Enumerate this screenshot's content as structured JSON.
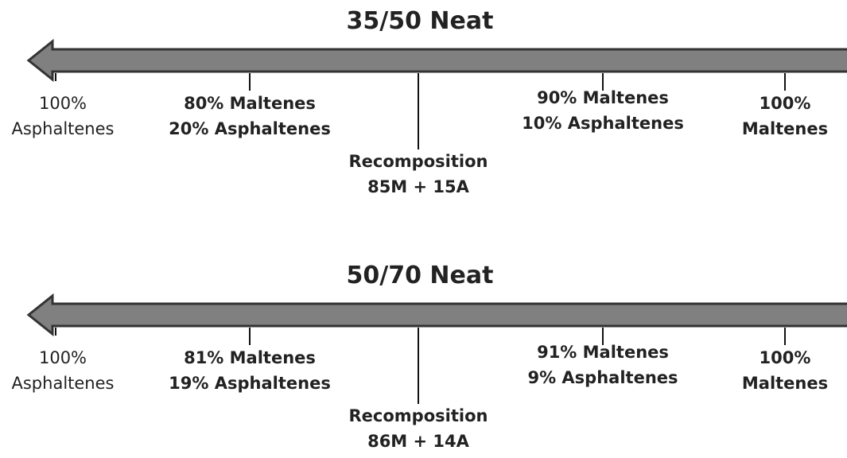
{
  "diagrams": [
    {
      "title": "35/50 Neat",
      "labels": [
        {
          "lines": [
            "100%",
            "Asphaltenes"
          ]
        },
        {
          "lines": [
            "80% Maltenes",
            "20% Asphaltenes"
          ]
        },
        {
          "lines": [
            "Recomposition",
            "85M + 15A"
          ]
        },
        {
          "lines": [
            "90% Maltenes",
            "10% Asphaltenes"
          ]
        },
        {
          "lines": [
            "100%",
            "Maltenes"
          ]
        }
      ]
    },
    {
      "title": "50/70 Neat",
      "labels": [
        {
          "lines": [
            "100%",
            "Asphaltenes"
          ]
        },
        {
          "lines": [
            "81% Maltenes",
            "19% Asphaltenes"
          ]
        },
        {
          "lines": [
            "Recomposition",
            "86M + 14A"
          ]
        },
        {
          "lines": [
            "91% Maltenes",
            "9% Asphaltenes"
          ]
        },
        {
          "lines": [
            "100%",
            "Maltenes"
          ]
        }
      ]
    }
  ]
}
